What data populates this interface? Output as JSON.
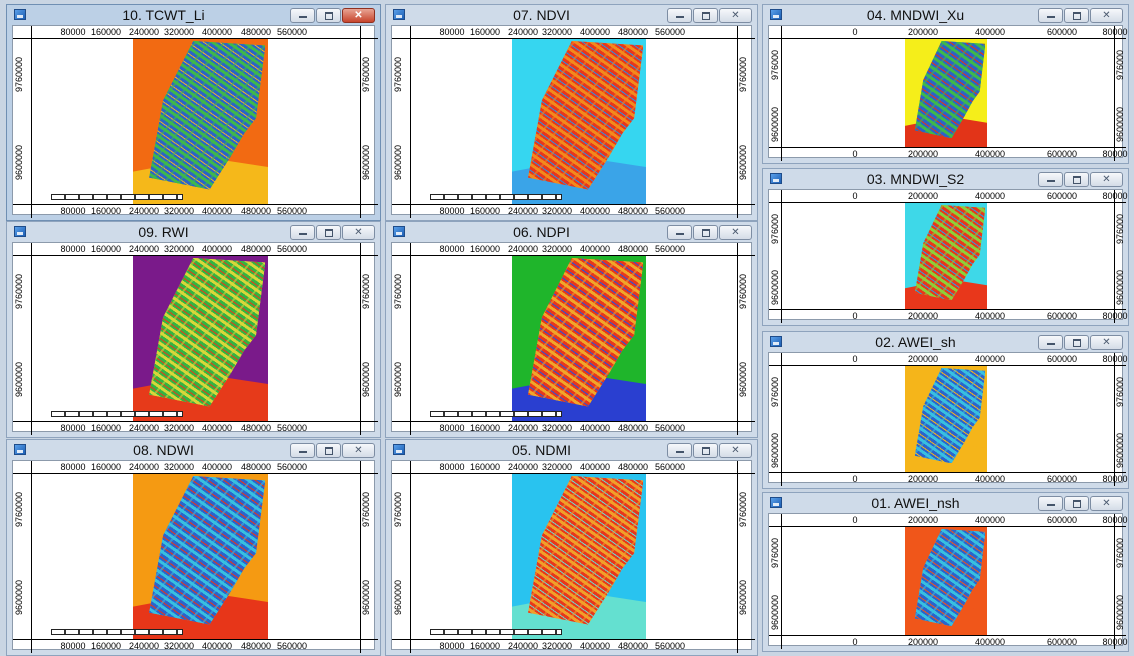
{
  "windows": [
    {
      "id": "tcwt",
      "title": "10. TCWT_Li",
      "active": true,
      "bg": "#f26a12",
      "scene_hi": "#2b63c8",
      "scene_mid": "#3fb84a",
      "scene_lo": "#e7b02a",
      "bottom": "#f5b81a",
      "x_ticks": [
        "80000",
        "160000",
        "240000",
        "320000",
        "400000",
        "480000",
        "560000"
      ],
      "y_ticks": [
        "9760000",
        "9600000"
      ]
    },
    {
      "id": "ndvi",
      "title": "07. NDVI",
      "active": false,
      "bg": "#36d6f0",
      "scene_hi": "#e8371b",
      "scene_mid": "#f28a1c",
      "scene_lo": "#2f8de0",
      "bottom": "#3aa4e8",
      "x_ticks": [
        "80000",
        "160000",
        "240000",
        "320000",
        "400000",
        "480000",
        "560000"
      ],
      "y_ticks": [
        "9760000",
        "9600000"
      ]
    },
    {
      "id": "mndwi_xu",
      "title": "04. MNDWI_Xu",
      "active": false,
      "bg": "#f5ee1a",
      "scene_hi": "#2b63c8",
      "scene_mid": "#3fb84a",
      "scene_lo": "#e23418",
      "bottom": "#e23418",
      "x_ticks": [
        "0",
        "200000",
        "400000",
        "600000",
        "80000"
      ],
      "y_ticks": [
        "976000",
        "9600000"
      ]
    },
    {
      "id": "rwi",
      "title": "09. RWI",
      "active": false,
      "bg": "#7a1a8a",
      "scene_hi": "#34b342",
      "scene_mid": "#d9d53a",
      "scene_lo": "#e63a1a",
      "bottom": "#e63a1a",
      "x_ticks": [
        "80000",
        "160000",
        "240000",
        "320000",
        "400000",
        "480000",
        "560000"
      ],
      "y_ticks": [
        "9760000",
        "9600000"
      ]
    },
    {
      "id": "ndpi",
      "title": "06. NDPI",
      "active": false,
      "bg": "#1fb52b",
      "scene_hi": "#e8371b",
      "scene_mid": "#f0a62a",
      "scene_lo": "#2a52d8",
      "bottom": "#2a3fd0",
      "x_ticks": [
        "80000",
        "160000",
        "240000",
        "320000",
        "400000",
        "480000",
        "560000"
      ],
      "y_ticks": [
        "9760000",
        "9600000"
      ]
    },
    {
      "id": "mndwi_s2",
      "title": "03. MNDWI_S2",
      "active": false,
      "bg": "#3ed8e8",
      "scene_hi": "#e8371b",
      "scene_mid": "#8ccf3a",
      "scene_lo": "#2f9be0",
      "bottom": "#e8371b",
      "x_ticks": [
        "0",
        "200000",
        "400000",
        "600000",
        "80000"
      ],
      "y_ticks": [
        "976000",
        "9600000"
      ]
    },
    {
      "id": "ndwi",
      "title": "08. NDWI",
      "active": false,
      "bg": "#f59a12",
      "scene_hi": "#2a64cc",
      "scene_mid": "#38c0e0",
      "scene_lo": "#e73619",
      "bottom": "#e73619",
      "x_ticks": [
        "80000",
        "160000",
        "240000",
        "320000",
        "400000",
        "480000",
        "560000"
      ],
      "y_ticks": [
        "9760000",
        "9600000"
      ]
    },
    {
      "id": "ndmi",
      "title": "05. NDMI",
      "active": false,
      "bg": "#29c3ef",
      "scene_hi": "#e8371b",
      "scene_mid": "#f0a02a",
      "scene_lo": "#6fd7c9",
      "bottom": "#64e0d0",
      "x_ticks": [
        "80000",
        "160000",
        "240000",
        "320000",
        "400000",
        "480000",
        "560000"
      ],
      "y_ticks": [
        "9760000",
        "9600000"
      ]
    },
    {
      "id": "awei_sh",
      "title": "02. AWEI_sh",
      "active": false,
      "bg": "#f5b51a",
      "scene_hi": "#2a64cc",
      "scene_mid": "#38c0e0",
      "scene_lo": "#f5b51a",
      "bottom": "#f5b51a",
      "x_ticks": [
        "0",
        "200000",
        "400000",
        "600000",
        "80000"
      ],
      "y_ticks": [
        "976000",
        "9600000"
      ]
    },
    {
      "id": "awei_nsh",
      "title": "01. AWEI_nsh",
      "active": false,
      "bg": "#f0561a",
      "scene_hi": "#2a64cc",
      "scene_mid": "#38c0e0",
      "scene_lo": "#f0561a",
      "bottom": "#f0561a",
      "x_ticks": [
        "0",
        "200000",
        "400000",
        "600000",
        "80000"
      ],
      "y_ticks": [
        "976000",
        "9600000"
      ]
    }
  ]
}
